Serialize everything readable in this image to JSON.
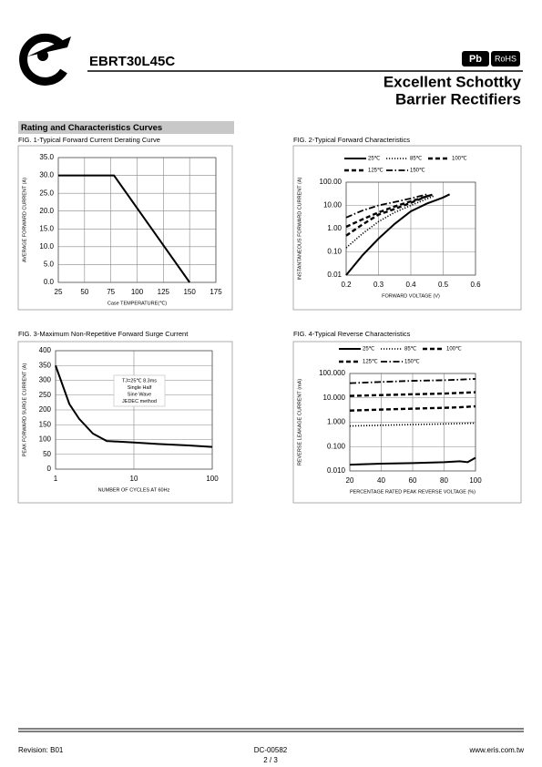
{
  "header": {
    "part_number": "EBRT30L45C",
    "badge_pb": "Pb",
    "badge_rohs": "RoHS",
    "title_line1": "Excellent Schottky",
    "title_line2": "Barrier Rectifiers"
  },
  "section_title": "Rating and Characteristics Curves",
  "chart_data": [
    {
      "type": "line",
      "title": "FIG. 1-Typical Forward Current Derating Curve",
      "x_label": "Case TEMPERATURE(℃)",
      "y_label": "AVERAGE FORWARD CURRENT (A)",
      "x": [
        25,
        78,
        150
      ],
      "values": [
        30,
        30,
        0
      ],
      "color": "#000000",
      "xlim": [
        25,
        175
      ],
      "xticks": [
        25,
        50,
        75,
        100,
        125,
        150,
        175
      ],
      "ylim": [
        0,
        35
      ],
      "yticks": [
        {
          "value": 0,
          "label": "0.0"
        },
        {
          "value": 5,
          "label": "5.0"
        },
        {
          "value": 10,
          "label": "10.0"
        },
        {
          "value": 15,
          "label": "15.0"
        },
        {
          "value": 20,
          "label": "20.0"
        },
        {
          "value": 25,
          "label": "25.0"
        },
        {
          "value": 30,
          "label": "30.0"
        },
        {
          "value": 35,
          "label": "35.0"
        }
      ],
      "grid": true
    },
    {
      "type": "line",
      "title": "FIG. 2-Typical Forward Characteristics",
      "x_label": "FORWARD VOLTAGE (V)",
      "y_label": "INSTANTANEOUS FORWARD CURRENT (A)",
      "yscale": "log",
      "legend": "top",
      "series": [
        {
          "name": "25℃",
          "color": "#000000",
          "dash": "solid",
          "x": [
            0.2,
            0.25,
            0.3,
            0.35,
            0.4,
            0.45,
            0.5,
            0.52
          ],
          "values": [
            0.01,
            0.07,
            0.37,
            1.6,
            5.6,
            12,
            22,
            30
          ]
        },
        {
          "name": "85℃",
          "color": "#000000",
          "dash": "dotted",
          "x": [
            0.2,
            0.25,
            0.3,
            0.35,
            0.4,
            0.47
          ],
          "values": [
            0.15,
            0.6,
            2,
            5,
            10,
            25
          ]
        },
        {
          "name": "100℃",
          "color": "#000000",
          "dash": "dashed",
          "x": [
            0.2,
            0.25,
            0.3,
            0.35,
            0.4,
            0.47
          ],
          "values": [
            1.2,
            2.5,
            5,
            9,
            15,
            30
          ]
        },
        {
          "name": "125℃",
          "color": "#000000",
          "dash": "dashed",
          "x": [
            0.2,
            0.25,
            0.3,
            0.35,
            0.4,
            0.46
          ],
          "values": [
            0.5,
            1.5,
            4,
            7,
            13,
            28
          ]
        },
        {
          "name": "150℃",
          "color": "#000000",
          "dash": "dashdot",
          "x": [
            0.2,
            0.25,
            0.3,
            0.35,
            0.4,
            0.45
          ],
          "values": [
            3,
            6,
            10,
            14,
            20,
            30
          ]
        }
      ],
      "xlim": [
        0.2,
        0.6
      ],
      "xticks": [
        0.2,
        0.3,
        0.4,
        0.5,
        0.6
      ],
      "ylim": [
        0.01,
        100
      ],
      "yticks": [
        0.01,
        {
          "value": 0.1,
          "label": "0.10"
        },
        {
          "value": 1,
          "label": "1.00"
        },
        {
          "value": 10,
          "label": "10.00"
        },
        {
          "value": 100,
          "label": "100.00"
        }
      ],
      "grid": true
    },
    {
      "type": "line",
      "title": "FIG. 3-Maximum Non-Repetitive Forward Surge Current",
      "x_label": "NUMBER OF CYCLES AT 60Hz",
      "y_label": "PEAK FORWARD SURGE CURRENT (A)",
      "xscale": "log",
      "annotation": [
        "TJ=25℃ 8.3ms",
        "Single Half",
        "Sine Wave",
        "JEDEC method"
      ],
      "x": [
        1,
        1.5,
        2,
        3,
        4.5,
        10,
        20,
        50,
        100
      ],
      "values": [
        350,
        220,
        170,
        120,
        95,
        90,
        85,
        80,
        75
      ],
      "color": "#000000",
      "xlim": [
        1,
        100
      ],
      "xticks": [
        1,
        10,
        100
      ],
      "ylim": [
        0,
        400
      ],
      "yticks": [
        0,
        50,
        100,
        150,
        200,
        250,
        300,
        350,
        400
      ],
      "grid": true
    },
    {
      "type": "line",
      "title": "FIG. 4-Typical Reverse Characteristics",
      "x_label": "PERCENTAGE RATED PEAK REVERSE VOLTAGE (%)",
      "y_label": "REVERSE LEAKAGE CURRENT (mA)",
      "yscale": "log",
      "legend": "top",
      "x": [
        20,
        40,
        60,
        80,
        90,
        95,
        100
      ],
      "series": [
        {
          "name": "25℃",
          "color": "#000000",
          "dash": "solid",
          "values": [
            0.018,
            0.02,
            0.021,
            0.023,
            0.025,
            0.023,
            0.035
          ]
        },
        {
          "name": "85℃",
          "color": "#000000",
          "dash": "dotted",
          "values": [
            0.7,
            0.75,
            0.8,
            0.85,
            0.88,
            0.9,
            0.92
          ]
        },
        {
          "name": "100℃",
          "color": "#000000",
          "dash": "dashed",
          "values": [
            3,
            3.3,
            3.6,
            3.9,
            4.1,
            4.3,
            4.5
          ]
        },
        {
          "name": "125℃",
          "color": "#000000",
          "dash": "dashed",
          "values": [
            12,
            13,
            14,
            15,
            16,
            16.5,
            17
          ]
        },
        {
          "name": "150℃",
          "color": "#000000",
          "dash": "dashdot",
          "values": [
            40,
            45,
            50,
            53,
            56,
            58,
            60
          ]
        }
      ],
      "xlim": [
        20,
        100
      ],
      "xticks": [
        20,
        40,
        60,
        80,
        100
      ],
      "ylim": [
        0.01,
        100
      ],
      "yticks": [
        {
          "value": 0.01,
          "label": "0.010"
        },
        {
          "value": 0.1,
          "label": "0.100"
        },
        {
          "value": 1,
          "label": "1.000"
        },
        {
          "value": 10,
          "label": "10.000"
        },
        {
          "value": 100,
          "label": "100.000"
        }
      ],
      "grid": true
    }
  ],
  "footer": {
    "revision": "Revision: B01",
    "doc_number": "DC-00582",
    "page": "2 / 3",
    "website": "www.eris.com.tw"
  }
}
